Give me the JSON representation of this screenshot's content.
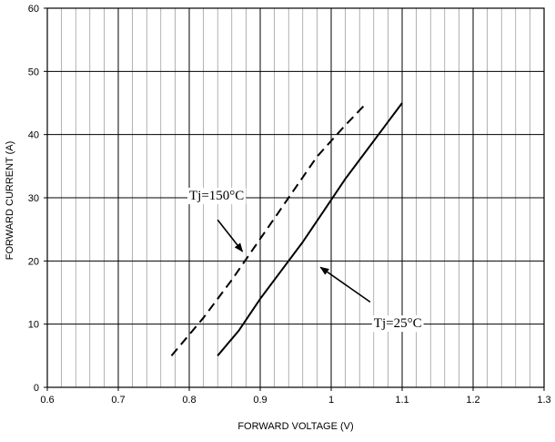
{
  "chart_data": {
    "type": "line",
    "xlabel": "FORWARD VOLTAGE (V)",
    "ylabel": "FORWARD CURRENT (A)",
    "xlim": [
      0.6,
      1.3
    ],
    "ylim": [
      0,
      60
    ],
    "x_major_ticks": [
      0.6,
      0.7,
      0.8,
      0.9,
      1,
      1.1,
      1.2,
      1.3
    ],
    "x_tick_labels": [
      "0.6",
      "0.7",
      "0.8",
      "0.9",
      "1",
      "1.1",
      "1.2",
      "1.3"
    ],
    "x_minor_step": 0.02,
    "y_ticks": [
      0,
      10,
      20,
      30,
      40,
      50,
      60
    ],
    "y_tick_labels": [
      "0",
      "10",
      "20",
      "30",
      "40",
      "50",
      "60"
    ],
    "grid": true,
    "legend": "none",
    "series": [
      {
        "name": "Tj=150°C",
        "style": "dashed",
        "x": [
          0.775,
          0.82,
          0.86,
          0.9,
          0.94,
          0.98,
          1.02,
          1.05
        ],
        "y": [
          5,
          11,
          17,
          23.5,
          30,
          36.5,
          41.5,
          45
        ]
      },
      {
        "name": "Tj=25°C",
        "style": "solid",
        "x": [
          0.84,
          0.87,
          0.9,
          0.93,
          0.96,
          0.99,
          1.02,
          1.05,
          1.08,
          1.1
        ],
        "y": [
          5,
          9,
          14,
          18.5,
          23,
          28,
          33,
          37.5,
          42,
          45
        ]
      }
    ],
    "annotations": [
      {
        "text": "Tj=150°C",
        "series": 0,
        "label_x": 0.8,
        "label_y": 29.7,
        "arrow_from": [
          0.84,
          26.5
        ],
        "arrow_to": [
          0.875,
          21.5
        ]
      },
      {
        "text": "Tj=25°C",
        "series": 1,
        "label_x": 1.06,
        "label_y": 9.5,
        "arrow_from": [
          1.055,
          13.5
        ],
        "arrow_to": [
          0.985,
          19
        ]
      }
    ]
  },
  "colors": {
    "line": "#000000",
    "grid": "#808080",
    "frame": "#000000",
    "background": "#ffffff"
  }
}
